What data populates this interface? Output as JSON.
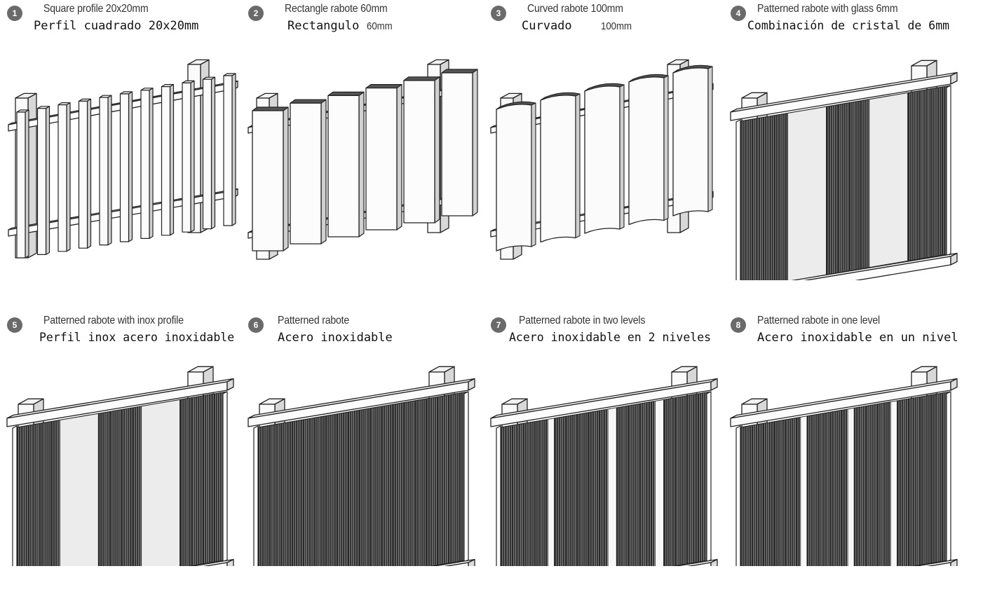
{
  "panels": [
    {
      "num": "1",
      "title_en": "Square profile 20x20mm",
      "title_es": "Perfil cuadrado 20x20mm",
      "title_es_unit": ""
    },
    {
      "num": "2",
      "title_en": "Rectangle rabote 60mm",
      "title_es": "Rectangulo",
      "title_es_unit": "60mm"
    },
    {
      "num": "3",
      "title_en": "Curved rabote 100mm",
      "title_es": "Curvado",
      "title_es_unit": "100mm"
    },
    {
      "num": "4",
      "title_en": "Patterned rabote with glass 6mm",
      "title_es": "Combinación de cristal de 6mm",
      "title_es_unit": ""
    },
    {
      "num": "5",
      "title_en": "Patterned rabote with inox profile",
      "title_es": "Perfil inox acero inoxidable",
      "title_es_unit": ""
    },
    {
      "num": "6",
      "title_en": "Patterned rabote",
      "title_es": "Acero inoxidable",
      "title_es_unit": ""
    },
    {
      "num": "7",
      "title_en": "Patterned rabote in two levels",
      "title_es": "Acero inoxidable en 2 niveles",
      "title_es_unit": ""
    },
    {
      "num": "8",
      "title_en": "Patterned rabote in one level",
      "title_es": "Acero inoxidable en un nivel",
      "title_es_unit": ""
    }
  ]
}
